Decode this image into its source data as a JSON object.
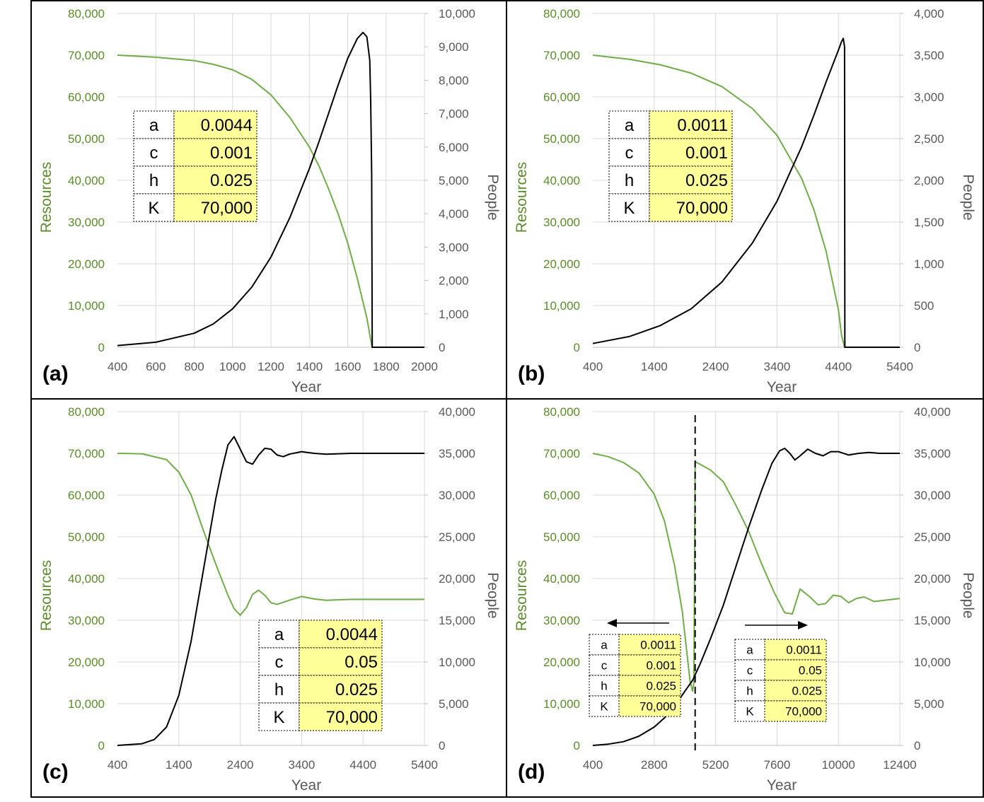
{
  "figure": {
    "colors": {
      "resources": "#70ad47",
      "people": "#000000",
      "grid": "#d9d9d9",
      "frame": "#000000",
      "param_bg": "#ffff99",
      "left_axis_text": "#5b8c2a",
      "right_axis_text": "#595959"
    },
    "panels": [
      {
        "id": "a",
        "label": "(a)",
        "x_ticks": [
          "400",
          "600",
          "800",
          "1000",
          "1200",
          "1400",
          "1600",
          "1800",
          "2000"
        ],
        "y_left_ticks": [
          "0",
          "10,000",
          "20,000",
          "30,000",
          "40,000",
          "50,000",
          "60,000",
          "70,000",
          "80,000"
        ],
        "y_right_ticks": [
          "0",
          "1,000",
          "2,000",
          "3,000",
          "4,000",
          "5,000",
          "6,000",
          "7,000",
          "8,000",
          "9,000",
          "10,000"
        ],
        "params": [
          {
            "name": "a",
            "value": "0.0044"
          },
          {
            "name": "c",
            "value": "0.001"
          },
          {
            "name": "h",
            "value": "0.025"
          },
          {
            "name": "K",
            "value": "70,000"
          }
        ]
      },
      {
        "id": "b",
        "label": "(b)",
        "x_ticks": [
          "400",
          "1400",
          "2400",
          "3400",
          "4400",
          "5400"
        ],
        "y_left_ticks": [
          "0",
          "10,000",
          "20,000",
          "30,000",
          "40,000",
          "50,000",
          "60,000",
          "70,000",
          "80,000"
        ],
        "y_right_ticks": [
          "0",
          "500",
          "1,000",
          "1,500",
          "2,000",
          "2,500",
          "3,000",
          "3,500",
          "4,000"
        ],
        "params": [
          {
            "name": "a",
            "value": "0.0011"
          },
          {
            "name": "c",
            "value": "0.001"
          },
          {
            "name": "h",
            "value": "0.025"
          },
          {
            "name": "K",
            "value": "70,000"
          }
        ]
      },
      {
        "id": "c",
        "label": "(c)",
        "x_ticks": [
          "400",
          "1400",
          "2400",
          "3400",
          "4400",
          "5400"
        ],
        "y_left_ticks": [
          "0",
          "10,000",
          "20,000",
          "30,000",
          "40,000",
          "50,000",
          "60,000",
          "70,000",
          "80,000"
        ],
        "y_right_ticks": [
          "0",
          "5,000",
          "10,000",
          "15,000",
          "20,000",
          "25,000",
          "30,000",
          "35,000",
          "40,000"
        ],
        "params": [
          {
            "name": "a",
            "value": "0.0044"
          },
          {
            "name": "c",
            "value": "0.05"
          },
          {
            "name": "h",
            "value": "0.025"
          },
          {
            "name": "K",
            "value": "70,000"
          }
        ]
      },
      {
        "id": "d",
        "label": "(d)",
        "x_ticks": [
          "400",
          "2800",
          "5200",
          "7600",
          "10000",
          "12400"
        ],
        "y_left_ticks": [
          "0",
          "10,000",
          "20,000",
          "30,000",
          "40,000",
          "50,000",
          "60,000",
          "70,000",
          "80,000"
        ],
        "y_right_ticks": [
          "0",
          "5,000",
          "10,000",
          "15,000",
          "20,000",
          "25,000",
          "30,000",
          "35,000",
          "40,000"
        ],
        "params_before": [
          {
            "name": "a",
            "value": "0.0011"
          },
          {
            "name": "c",
            "value": "0.001"
          },
          {
            "name": "h",
            "value": "0.025"
          },
          {
            "name": "K",
            "value": "70,000"
          }
        ],
        "params_after": [
          {
            "name": "a",
            "value": "0.0011"
          },
          {
            "name": "c",
            "value": "0.05"
          },
          {
            "name": "h",
            "value": "0.025"
          },
          {
            "name": "K",
            "value": "70,000"
          }
        ]
      }
    ]
  },
  "chart_data": [
    {
      "type": "line",
      "panel": "(a)",
      "xlabel": "Year",
      "ylabel": "Resources",
      "y2label": "People",
      "xlim": [
        400,
        2000
      ],
      "ylim": [
        0,
        80000
      ],
      "y2lim": [
        0,
        10000
      ],
      "grid": true,
      "series": [
        {
          "name": "Resources",
          "axis": "left",
          "color": "#70ad47",
          "x": [
            400,
            600,
            800,
            900,
            1000,
            1100,
            1200,
            1300,
            1400,
            1450,
            1500,
            1550,
            1600,
            1650,
            1700,
            1727,
            1760,
            2000
          ],
          "y": [
            70000,
            69500,
            68700,
            67800,
            66500,
            64200,
            60500,
            55000,
            48000,
            43500,
            38000,
            32000,
            25000,
            16500,
            7000,
            0,
            0,
            0
          ]
        },
        {
          "name": "People",
          "axis": "right",
          "color": "#000000",
          "x": [
            400,
            600,
            800,
            900,
            1000,
            1100,
            1200,
            1300,
            1400,
            1450,
            1500,
            1550,
            1600,
            1650,
            1680,
            1700,
            1715,
            1720,
            1725,
            1727,
            1728,
            1760,
            2000
          ],
          "y": [
            50,
            150,
            420,
            700,
            1150,
            1800,
            2700,
            3900,
            5350,
            6150,
            7000,
            7850,
            8650,
            9250,
            9430,
            9300,
            8600,
            7400,
            5200,
            2000,
            0,
            0,
            0
          ]
        }
      ]
    },
    {
      "type": "line",
      "panel": "(b)",
      "xlabel": "Year",
      "ylabel": "Resources",
      "y2label": "People",
      "xlim": [
        400,
        5400
      ],
      "ylim": [
        0,
        80000
      ],
      "y2lim": [
        0,
        4000
      ],
      "grid": true,
      "series": [
        {
          "name": "Resources",
          "axis": "left",
          "color": "#70ad47",
          "x": [
            400,
            1000,
            1500,
            2000,
            2500,
            3000,
            3400,
            3800,
            4000,
            4200,
            4400,
            4450,
            4500,
            4550,
            5400
          ],
          "y": [
            70000,
            69000,
            67700,
            65700,
            62500,
            57200,
            50800,
            40500,
            33000,
            23000,
            9000,
            3000,
            0,
            0,
            0
          ]
        },
        {
          "name": "People",
          "axis": "right",
          "color": "#000000",
          "x": [
            400,
            1000,
            1500,
            2000,
            2500,
            3000,
            3400,
            3800,
            4000,
            4200,
            4400,
            4450,
            4480,
            4500,
            4505,
            4550,
            5400
          ],
          "y": [
            45,
            130,
            260,
            460,
            780,
            1250,
            1750,
            2400,
            2780,
            3180,
            3560,
            3660,
            3700,
            3600,
            0,
            0,
            0
          ]
        }
      ]
    },
    {
      "type": "line",
      "panel": "(c)",
      "xlabel": "Year",
      "ylabel": "Resources",
      "y2label": "People",
      "xlim": [
        400,
        5400
      ],
      "ylim": [
        0,
        80000
      ],
      "y2lim": [
        0,
        40000
      ],
      "grid": true,
      "series": [
        {
          "name": "Resources",
          "axis": "left",
          "color": "#70ad47",
          "x": [
            400,
            800,
            1200,
            1400,
            1600,
            1800,
            2000,
            2200,
            2300,
            2400,
            2500,
            2600,
            2700,
            2800,
            2900,
            3000,
            3200,
            3400,
            3600,
            3800,
            4200,
            5400
          ],
          "y": [
            70000,
            69900,
            68500,
            65500,
            60000,
            51500,
            43500,
            36000,
            32800,
            31200,
            33000,
            36200,
            37200,
            36000,
            34200,
            33800,
            34800,
            35700,
            35100,
            34800,
            35000,
            35000
          ]
        },
        {
          "name": "People",
          "axis": "right",
          "color": "#000000",
          "x": [
            400,
            800,
            1000,
            1200,
            1400,
            1600,
            1800,
            2000,
            2100,
            2200,
            2300,
            2400,
            2500,
            2600,
            2700,
            2800,
            2900,
            3000,
            3100,
            3200,
            3400,
            3600,
            3800,
            4200,
            5400
          ],
          "y": [
            0,
            200,
            700,
            2200,
            6000,
            12500,
            21000,
            29500,
            33000,
            36000,
            37000,
            35500,
            34000,
            33700,
            34800,
            35600,
            35500,
            34800,
            34600,
            34900,
            35200,
            35000,
            34900,
            35000,
            35000
          ]
        }
      ]
    },
    {
      "type": "line",
      "panel": "(d)",
      "xlabel": "Year",
      "ylabel": "Resources",
      "y2label": "People",
      "xlim": [
        400,
        12400
      ],
      "ylim": [
        0,
        80000
      ],
      "y2lim": [
        0,
        40000
      ],
      "grid": true,
      "series": [
        {
          "name": "Resources",
          "axis": "left",
          "color": "#70ad47",
          "x": [
            400,
            1000,
            1600,
            2200,
            2800,
            3200,
            3600,
            3900,
            4100,
            4200,
            4300,
            4350,
            4400,
            4500,
            5000,
            5500,
            6000,
            6500,
            7000,
            7500,
            7900,
            8200,
            8500,
            8900,
            9200,
            9500,
            9800,
            10100,
            10400,
            10700,
            11000,
            11400,
            11800,
            12400
          ],
          "y": [
            70000,
            69200,
            67800,
            65300,
            60200,
            53800,
            43000,
            32000,
            21000,
            15500,
            13000,
            15000,
            68000,
            67700,
            66000,
            63200,
            57500,
            51200,
            43500,
            36500,
            31800,
            31500,
            37500,
            35500,
            33700,
            34000,
            36000,
            35700,
            34200,
            35200,
            35600,
            34500,
            34800,
            35200
          ]
        },
        {
          "name": "People",
          "axis": "right",
          "color": "#000000",
          "x": [
            400,
            1000,
            1600,
            2200,
            2800,
            3200,
            3600,
            4000,
            4300,
            4600,
            5000,
            5500,
            6000,
            6500,
            7000,
            7400,
            7700,
            7900,
            8100,
            8300,
            8500,
            8800,
            9100,
            9400,
            9700,
            10000,
            10400,
            10800,
            11200,
            11600,
            12400
          ],
          "y": [
            0,
            150,
            450,
            1100,
            2200,
            3300,
            4700,
            6500,
            7800,
            9800,
            12800,
            16800,
            21500,
            26200,
            30600,
            33800,
            35300,
            35600,
            35000,
            34200,
            34700,
            35500,
            35000,
            34700,
            35200,
            35200,
            34800,
            35000,
            35100,
            35000,
            35000
          ]
        }
      ],
      "annotations": [
        "dashed vertical line at regime switch (~4400)",
        "left arrow: parameters before switch",
        "right arrow: parameters after switch"
      ]
    }
  ],
  "labels": {
    "x_axis": "Year",
    "y_left": "Resources",
    "y_right": "People"
  }
}
